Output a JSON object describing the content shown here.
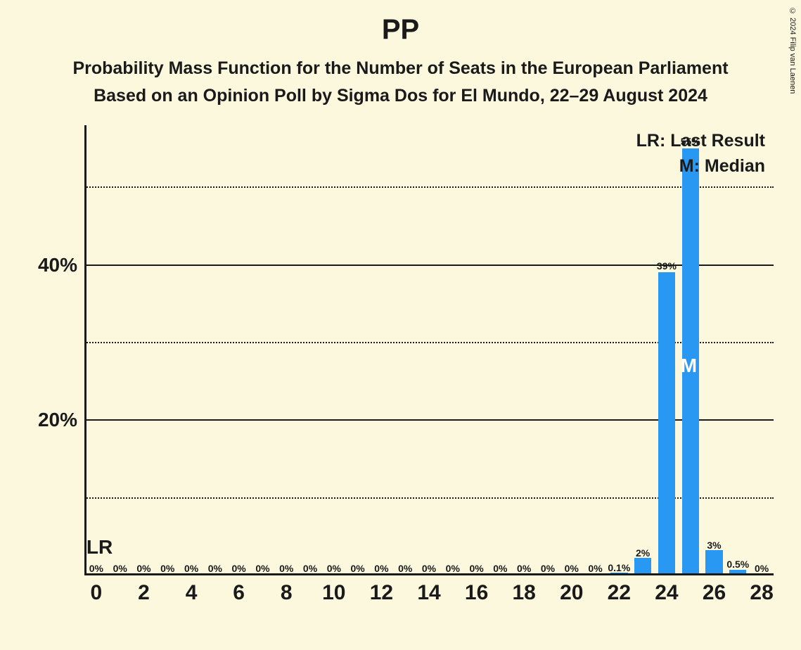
{
  "copyright": "© 2024 Filip van Laenen",
  "title": "PP",
  "subtitle1": "Probability Mass Function for the Number of Seats in the European Parliament",
  "subtitle2": "Based on an Opinion Poll by Sigma Dos for El Mundo, 22–29 August 2024",
  "legend": {
    "lr": "LR: Last Result",
    "m": "M: Median"
  },
  "chart": {
    "type": "bar",
    "background_color": "#fbf8de",
    "bar_color": "#2998f3",
    "axis_color": "#1a1a1a",
    "text_color": "#1a1a1a",
    "median_text_color": "#ffffff",
    "title_fontsize": 40,
    "subtitle_fontsize": 25,
    "ylabel_fontsize": 28,
    "xlabel_fontsize": 30,
    "barlabel_fontsize": 14,
    "bar_width_ratio": 0.72,
    "x_start": -0.5,
    "x_end": 28.5,
    "y_max_pct": 58,
    "y_major_gridlines_pct": [
      20,
      40
    ],
    "y_minor_gridlines_pct": [
      10,
      30,
      50
    ],
    "y_tick_labels": [
      {
        "pct": 20,
        "text": "20%"
      },
      {
        "pct": 40,
        "text": "40%"
      }
    ],
    "x_ticks": [
      0,
      2,
      4,
      6,
      8,
      10,
      12,
      14,
      16,
      18,
      20,
      22,
      24,
      26,
      28
    ],
    "bars": [
      {
        "x": 0,
        "pct": 0,
        "label": "0%"
      },
      {
        "x": 1,
        "pct": 0,
        "label": "0%"
      },
      {
        "x": 2,
        "pct": 0,
        "label": "0%"
      },
      {
        "x": 3,
        "pct": 0,
        "label": "0%"
      },
      {
        "x": 4,
        "pct": 0,
        "label": "0%"
      },
      {
        "x": 5,
        "pct": 0,
        "label": "0%"
      },
      {
        "x": 6,
        "pct": 0,
        "label": "0%"
      },
      {
        "x": 7,
        "pct": 0,
        "label": "0%"
      },
      {
        "x": 8,
        "pct": 0,
        "label": "0%"
      },
      {
        "x": 9,
        "pct": 0,
        "label": "0%"
      },
      {
        "x": 10,
        "pct": 0,
        "label": "0%"
      },
      {
        "x": 11,
        "pct": 0,
        "label": "0%"
      },
      {
        "x": 12,
        "pct": 0,
        "label": "0%"
      },
      {
        "x": 13,
        "pct": 0,
        "label": "0%"
      },
      {
        "x": 14,
        "pct": 0,
        "label": "0%"
      },
      {
        "x": 15,
        "pct": 0,
        "label": "0%"
      },
      {
        "x": 16,
        "pct": 0,
        "label": "0%"
      },
      {
        "x": 17,
        "pct": 0,
        "label": "0%"
      },
      {
        "x": 18,
        "pct": 0,
        "label": "0%"
      },
      {
        "x": 19,
        "pct": 0,
        "label": "0%"
      },
      {
        "x": 20,
        "pct": 0,
        "label": "0%"
      },
      {
        "x": 21,
        "pct": 0,
        "label": "0%"
      },
      {
        "x": 22,
        "pct": 0.1,
        "label": "0.1%"
      },
      {
        "x": 23,
        "pct": 2,
        "label": "2%"
      },
      {
        "x": 24,
        "pct": 39,
        "label": "39%"
      },
      {
        "x": 25,
        "pct": 55,
        "label": "55%"
      },
      {
        "x": 26,
        "pct": 3,
        "label": "3%"
      },
      {
        "x": 27,
        "pct": 0.5,
        "label": "0.5%"
      },
      {
        "x": 28,
        "pct": 0,
        "label": "0%"
      }
    ],
    "lr_marker": {
      "x": 0,
      "text": "LR"
    },
    "m_marker": {
      "x": 25,
      "text": "M"
    }
  }
}
